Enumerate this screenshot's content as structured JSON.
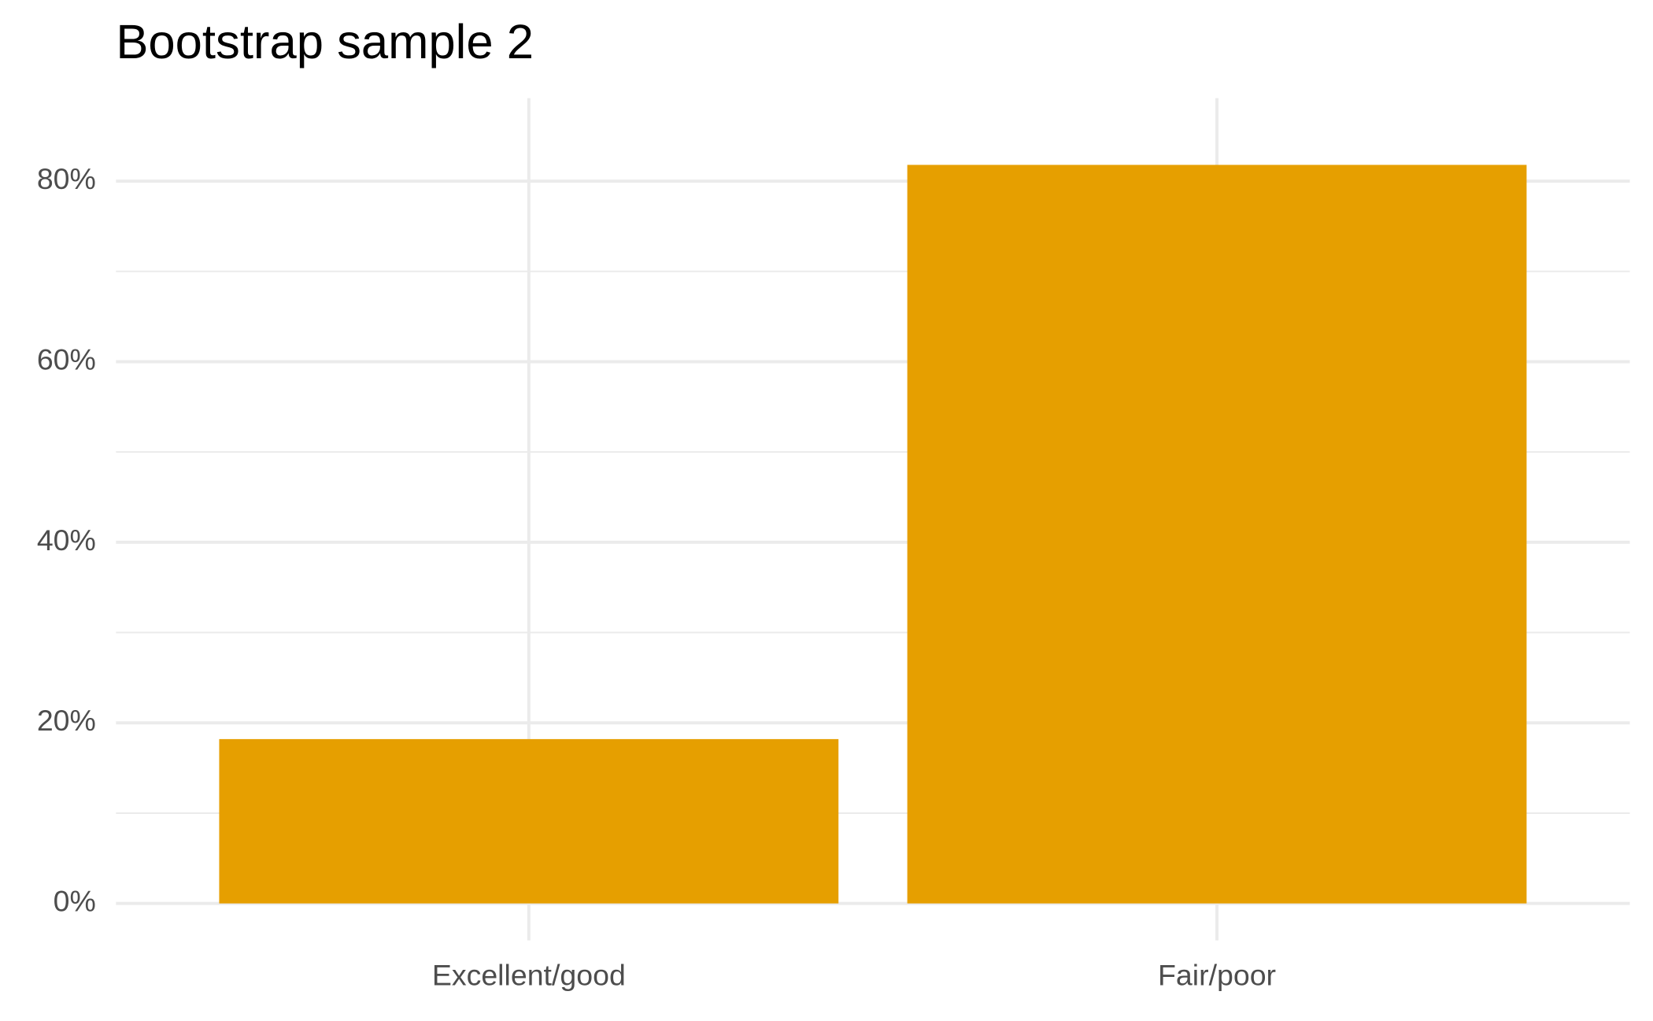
{
  "chart_data": {
    "type": "bar",
    "title": "Bootstrap sample 2",
    "categories": [
      "Excellent/good",
      "Fair/poor"
    ],
    "values": [
      18.2,
      81.8
    ],
    "color": "#e69f00",
    "ylim": [
      -4.1,
      89.2
    ],
    "yticks": [
      {
        "value": 0,
        "label": "0%"
      },
      {
        "value": 20,
        "label": "20%"
      },
      {
        "value": 40,
        "label": "40%"
      },
      {
        "value": 60,
        "label": "60%"
      },
      {
        "value": 80,
        "label": "80%"
      }
    ],
    "minor_yticks": [
      10,
      30,
      50,
      70
    ],
    "grid": true
  }
}
